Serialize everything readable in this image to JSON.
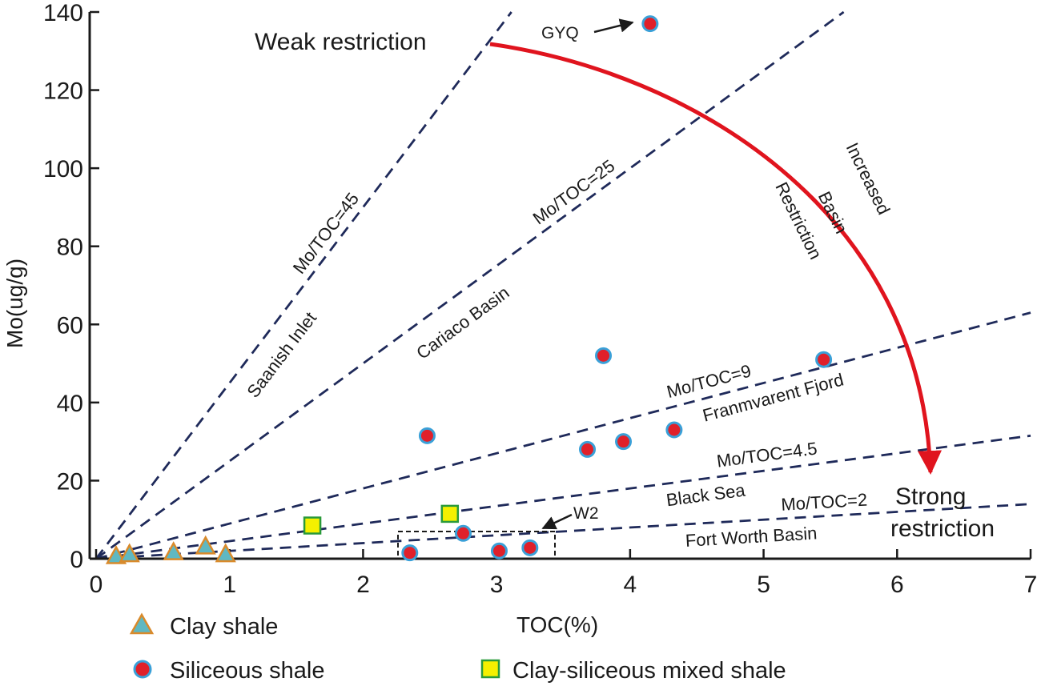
{
  "chart_data": {
    "type": "scatter",
    "xlabel": "TOC(%)",
    "ylabel": "Mo(ug/g)",
    "xlim": [
      0,
      7
    ],
    "ylim": [
      0,
      140
    ],
    "x_ticks": [
      "0",
      "1",
      "2",
      "3",
      "4",
      "5",
      "6",
      "7"
    ],
    "y_ticks": [
      "0",
      "20",
      "40",
      "60",
      "80",
      "100",
      "120",
      "140"
    ],
    "grid": false,
    "legend_position": "bottom",
    "series": [
      {
        "name": "Clay shale",
        "marker": "triangle",
        "fill": "#5fb8c2",
        "stroke": "#d98a2b",
        "points": [
          [
            0.15,
            0.5
          ],
          [
            0.25,
            1.0
          ],
          [
            0.58,
            1.5
          ],
          [
            0.82,
            3.0
          ],
          [
            0.97,
            1.0
          ]
        ]
      },
      {
        "name": "Siliceous shale",
        "marker": "circle",
        "fill": "#e0202a",
        "stroke": "#3aa0d8",
        "points": [
          [
            4.15,
            137
          ],
          [
            3.8,
            52
          ],
          [
            5.45,
            51
          ],
          [
            2.48,
            31.5
          ],
          [
            3.68,
            28
          ],
          [
            3.95,
            30
          ],
          [
            4.33,
            33
          ],
          [
            2.35,
            1.5
          ],
          [
            2.75,
            6.5
          ],
          [
            3.02,
            2
          ],
          [
            3.25,
            2.8
          ]
        ]
      },
      {
        "name": "Clay-siliceous mixed shale",
        "marker": "square",
        "fill": "#f5f000",
        "stroke": "#2a9a3a",
        "points": [
          [
            1.62,
            8.5
          ],
          [
            2.65,
            11.5
          ]
        ]
      }
    ],
    "ratio_lines": [
      {
        "label": "Mo/TOC=45",
        "slope": 45,
        "basin": "Saanish Inlet"
      },
      {
        "label": "Mo/TOC=25",
        "slope": 25,
        "basin": "Cariaco Basin"
      },
      {
        "label": "Mo/TOC=9",
        "slope": 9,
        "basin": "Franmvarent Fjord"
      },
      {
        "label": "Mo/TOC=4.5",
        "slope": 4.5,
        "basin": "Black Sea"
      },
      {
        "label": "Mo/TOC=2",
        "slope": 2,
        "basin": "Fort Worth Basin"
      }
    ],
    "annotations": {
      "weak": "Weak restriction",
      "strong_line1": "Strong",
      "strong_line2": "restriction",
      "increase_lines": [
        "Increased",
        "Basin",
        "Restriction"
      ],
      "gyq": "GYQ",
      "w2": "W2"
    },
    "colors": {
      "ratio_line": "#1f2a5a",
      "arrow": "#e0141e",
      "axis": "#1a1a1a"
    }
  }
}
